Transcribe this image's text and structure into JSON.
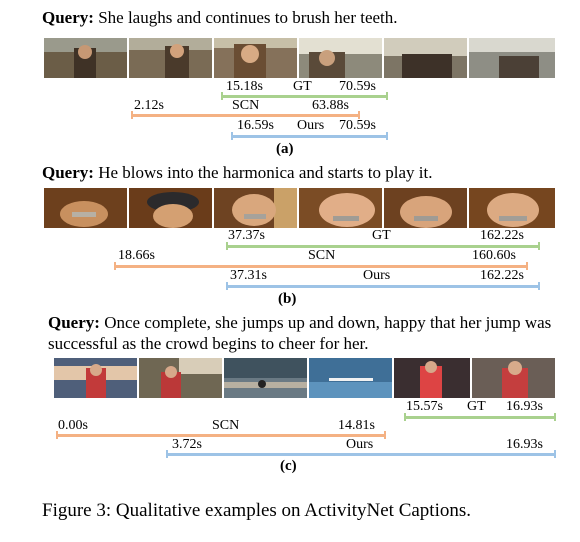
{
  "colors": {
    "gt": "#a9d18e",
    "scn": "#f4b183",
    "ours": "#9dc3e6"
  },
  "example_a": {
    "query_prefix": "Query:",
    "query_text": "She laughs and continues to brush her teeth.",
    "frames": [
      "frame-a1",
      "frame-a2",
      "frame-a3",
      "frame-a4",
      "frame-a5",
      "frame-a6"
    ],
    "gt": {
      "start": "15.18s",
      "name": "GT",
      "end": "70.59s"
    },
    "scn": {
      "start": "2.12s",
      "name": "SCN",
      "end": "63.88s"
    },
    "ours": {
      "start": "16.59s",
      "name": "Ours",
      "end": "70.59s"
    },
    "label": "(a)"
  },
  "example_b": {
    "query_prefix": "Query:",
    "query_text": "He blows into the harmonica and starts to play it.",
    "frames": [
      "frame-b1",
      "frame-b2",
      "frame-b3",
      "frame-b4",
      "frame-b5",
      "frame-b6"
    ],
    "gt": {
      "start": "37.37s",
      "name": "GT",
      "end": "162.22s"
    },
    "scn": {
      "start": "18.66s",
      "name": "SCN",
      "end": "160.60s"
    },
    "ours": {
      "start": "37.31s",
      "name": "Ours",
      "end": "162.22s"
    },
    "label": "(b)"
  },
  "example_c": {
    "query_prefix": "Query:",
    "query_text": "Once complete, she jumps up and down, happy that her jump was successful as the crowd begins to cheer for her.",
    "frames": [
      "frame-c1",
      "frame-c2",
      "frame-c3",
      "frame-c4",
      "frame-c5",
      "frame-c6"
    ],
    "gt": {
      "start": "15.57s",
      "name": "GT",
      "end": "16.93s"
    },
    "scn": {
      "start": "0.00s",
      "name": "SCN",
      "end": "14.81s"
    },
    "ours": {
      "start": "3.72s",
      "name": "Ours",
      "end": "16.93s"
    },
    "label": "(c)"
  },
  "caption": "Figure 3: Qualitative examples on ActivityNet Captions."
}
